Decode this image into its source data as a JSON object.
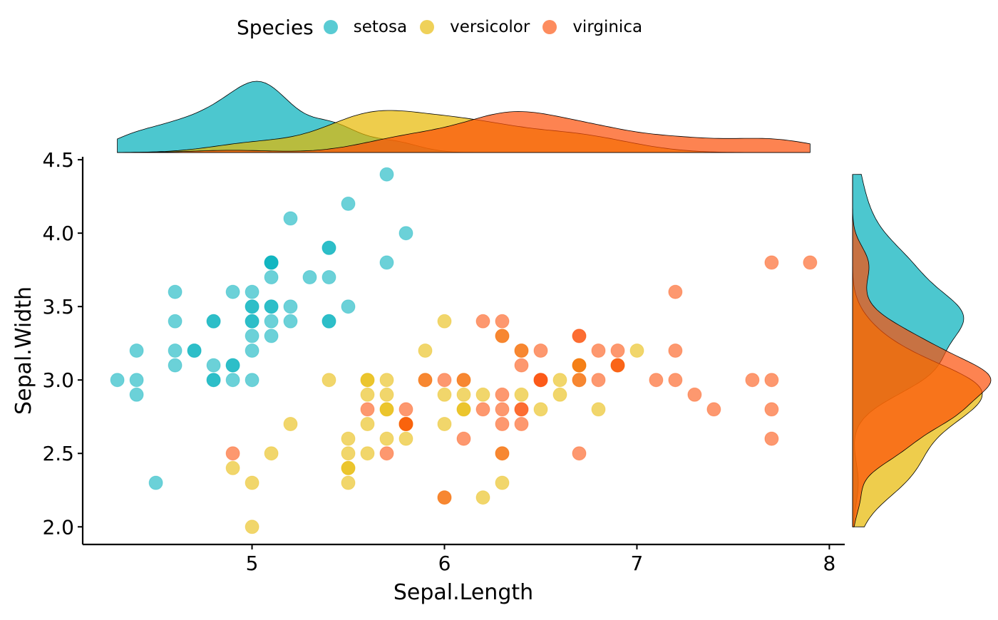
{
  "chart_data": {
    "type": "scatter",
    "xlabel": "Sepal.Length",
    "ylabel": "Sepal.Width",
    "xlim": [
      4.12,
      8.08
    ],
    "ylim": [
      1.88,
      4.52
    ],
    "x_ticks": [
      "5",
      "6",
      "7",
      "8"
    ],
    "y_ticks": [
      "2.0",
      "2.5",
      "3.0",
      "3.5",
      "4.0",
      "4.5"
    ],
    "legend": {
      "title": "Species",
      "position": "top",
      "entries": [
        "setosa",
        "versicolor",
        "virginica"
      ]
    },
    "marginal_x": "density",
    "marginal_y": "density",
    "grid": false,
    "series": [
      {
        "name": "setosa",
        "color": "#00AFBB",
        "points": [
          [
            5.1,
            3.5
          ],
          [
            4.9,
            3.0
          ],
          [
            4.7,
            3.2
          ],
          [
            4.6,
            3.1
          ],
          [
            5.0,
            3.6
          ],
          [
            5.4,
            3.9
          ],
          [
            4.6,
            3.4
          ],
          [
            5.0,
            3.4
          ],
          [
            4.4,
            2.9
          ],
          [
            4.9,
            3.1
          ],
          [
            5.4,
            3.7
          ],
          [
            4.8,
            3.4
          ],
          [
            4.8,
            3.0
          ],
          [
            4.3,
            3.0
          ],
          [
            5.8,
            4.0
          ],
          [
            5.7,
            4.4
          ],
          [
            5.4,
            3.9
          ],
          [
            5.1,
            3.5
          ],
          [
            5.7,
            3.8
          ],
          [
            5.1,
            3.8
          ],
          [
            5.4,
            3.4
          ],
          [
            5.1,
            3.7
          ],
          [
            4.6,
            3.6
          ],
          [
            5.1,
            3.3
          ],
          [
            4.8,
            3.4
          ],
          [
            5.0,
            3.0
          ],
          [
            5.0,
            3.4
          ],
          [
            5.2,
            3.5
          ],
          [
            5.2,
            3.4
          ],
          [
            4.7,
            3.2
          ],
          [
            4.8,
            3.1
          ],
          [
            5.4,
            3.4
          ],
          [
            5.2,
            4.1
          ],
          [
            5.5,
            4.2
          ],
          [
            4.9,
            3.1
          ],
          [
            5.0,
            3.2
          ],
          [
            5.5,
            3.5
          ],
          [
            4.9,
            3.6
          ],
          [
            4.4,
            3.0
          ],
          [
            5.1,
            3.4
          ],
          [
            5.0,
            3.5
          ],
          [
            4.5,
            2.3
          ],
          [
            4.4,
            3.2
          ],
          [
            5.0,
            3.5
          ],
          [
            5.1,
            3.8
          ],
          [
            4.8,
            3.0
          ],
          [
            5.1,
            3.8
          ],
          [
            4.6,
            3.2
          ],
          [
            5.3,
            3.7
          ],
          [
            5.0,
            3.3
          ]
        ]
      },
      {
        "name": "versicolor",
        "color": "#E7B800",
        "points": [
          [
            7.0,
            3.2
          ],
          [
            6.4,
            3.2
          ],
          [
            6.9,
            3.1
          ],
          [
            5.5,
            2.3
          ],
          [
            6.5,
            2.8
          ],
          [
            5.7,
            2.8
          ],
          [
            6.3,
            3.3
          ],
          [
            4.9,
            2.4
          ],
          [
            6.6,
            2.9
          ],
          [
            5.2,
            2.7
          ],
          [
            5.0,
            2.0
          ],
          [
            5.9,
            3.0
          ],
          [
            6.0,
            2.2
          ],
          [
            6.1,
            2.9
          ],
          [
            5.6,
            2.9
          ],
          [
            6.7,
            3.1
          ],
          [
            5.6,
            3.0
          ],
          [
            5.8,
            2.7
          ],
          [
            6.2,
            2.2
          ],
          [
            5.6,
            2.5
          ],
          [
            5.9,
            3.2
          ],
          [
            6.1,
            2.8
          ],
          [
            6.3,
            2.5
          ],
          [
            6.1,
            2.8
          ],
          [
            6.4,
            2.9
          ],
          [
            6.6,
            3.0
          ],
          [
            6.8,
            2.8
          ],
          [
            6.7,
            3.0
          ],
          [
            6.0,
            2.9
          ],
          [
            5.7,
            2.6
          ],
          [
            5.5,
            2.4
          ],
          [
            5.5,
            2.4
          ],
          [
            5.8,
            2.7
          ],
          [
            6.0,
            2.7
          ],
          [
            5.4,
            3.0
          ],
          [
            6.0,
            3.4
          ],
          [
            6.7,
            3.1
          ],
          [
            6.3,
            2.3
          ],
          [
            5.6,
            3.0
          ],
          [
            5.5,
            2.5
          ],
          [
            5.5,
            2.6
          ],
          [
            6.1,
            3.0
          ],
          [
            5.8,
            2.6
          ],
          [
            5.0,
            2.3
          ],
          [
            5.6,
            2.7
          ],
          [
            5.7,
            3.0
          ],
          [
            5.7,
            2.9
          ],
          [
            6.2,
            2.9
          ],
          [
            5.1,
            2.5
          ],
          [
            5.7,
            2.8
          ]
        ]
      },
      {
        "name": "virginica",
        "color": "#FC4E07",
        "points": [
          [
            6.3,
            3.3
          ],
          [
            5.8,
            2.7
          ],
          [
            7.1,
            3.0
          ],
          [
            6.3,
            2.9
          ],
          [
            6.5,
            3.0
          ],
          [
            7.6,
            3.0
          ],
          [
            4.9,
            2.5
          ],
          [
            7.3,
            2.9
          ],
          [
            6.7,
            2.5
          ],
          [
            7.2,
            3.6
          ],
          [
            6.5,
            3.2
          ],
          [
            6.4,
            2.7
          ],
          [
            6.8,
            3.0
          ],
          [
            5.7,
            2.5
          ],
          [
            5.8,
            2.8
          ],
          [
            6.4,
            3.2
          ],
          [
            6.5,
            3.0
          ],
          [
            7.7,
            3.8
          ],
          [
            7.7,
            2.6
          ],
          [
            6.0,
            2.2
          ],
          [
            6.9,
            3.2
          ],
          [
            5.6,
            2.8
          ],
          [
            7.7,
            2.8
          ],
          [
            6.3,
            2.7
          ],
          [
            6.7,
            3.3
          ],
          [
            7.2,
            3.2
          ],
          [
            6.2,
            2.8
          ],
          [
            6.1,
            3.0
          ],
          [
            6.4,
            2.8
          ],
          [
            7.2,
            3.0
          ],
          [
            7.4,
            2.8
          ],
          [
            7.9,
            3.8
          ],
          [
            6.4,
            2.8
          ],
          [
            6.3,
            2.8
          ],
          [
            6.1,
            2.6
          ],
          [
            7.7,
            3.0
          ],
          [
            6.3,
            3.4
          ],
          [
            6.4,
            3.1
          ],
          [
            6.0,
            3.0
          ],
          [
            6.9,
            3.1
          ],
          [
            6.7,
            3.1
          ],
          [
            6.9,
            3.1
          ],
          [
            5.8,
            2.7
          ],
          [
            6.8,
            3.2
          ],
          [
            6.7,
            3.3
          ],
          [
            6.7,
            3.0
          ],
          [
            6.3,
            2.5
          ],
          [
            6.5,
            3.0
          ],
          [
            6.2,
            3.4
          ],
          [
            5.9,
            3.0
          ]
        ]
      }
    ]
  }
}
